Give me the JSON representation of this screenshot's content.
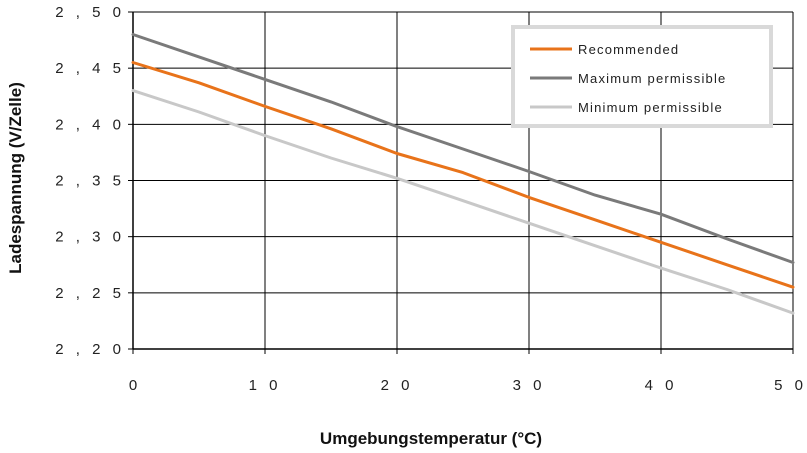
{
  "chart_data": {
    "type": "line",
    "xlabel": "Umgebungstemperatur (°C)",
    "ylabel": "Ladespannung (V/Zelle)",
    "xlim": [
      0,
      50
    ],
    "ylim": [
      2.2,
      2.5
    ],
    "x_ticks": [
      "0",
      "1 0",
      "2 0",
      "3 0",
      "4 0",
      "5 0"
    ],
    "x_tick_values": [
      0,
      10,
      20,
      30,
      40,
      50
    ],
    "y_ticks": [
      "2 , 2 0",
      "2 , 2 5",
      "2 , 3 0",
      "2 , 3 5",
      "2 , 4 0",
      "2 , 4 5",
      "2 , 5 0"
    ],
    "y_tick_values": [
      2.2,
      2.25,
      2.3,
      2.35,
      2.4,
      2.45,
      2.5
    ],
    "grid": true,
    "legend_position": "top-right",
    "series": [
      {
        "name": "Recommended",
        "color": "#E8731A",
        "x": [
          0,
          5,
          10,
          15,
          20,
          25,
          30,
          35,
          40,
          45,
          50
        ],
        "y": [
          2.455,
          2.437,
          2.416,
          2.396,
          2.374,
          2.357,
          2.335,
          2.315,
          2.295,
          2.275,
          2.255
        ]
      },
      {
        "name": "Maximum permissible",
        "color": "#7A7A7A",
        "x": [
          0,
          5,
          10,
          15,
          20,
          25,
          30,
          35,
          40,
          45,
          50
        ],
        "y": [
          2.48,
          2.46,
          2.44,
          2.42,
          2.398,
          2.378,
          2.358,
          2.337,
          2.32,
          2.298,
          2.277
        ]
      },
      {
        "name": "Minimum permissible",
        "color": "#C8C8C8",
        "x": [
          0,
          5,
          10,
          15,
          20,
          25,
          30,
          35,
          40,
          45,
          50
        ],
        "y": [
          2.43,
          2.411,
          2.39,
          2.37,
          2.352,
          2.332,
          2.312,
          2.292,
          2.272,
          2.253,
          2.232
        ]
      }
    ]
  }
}
